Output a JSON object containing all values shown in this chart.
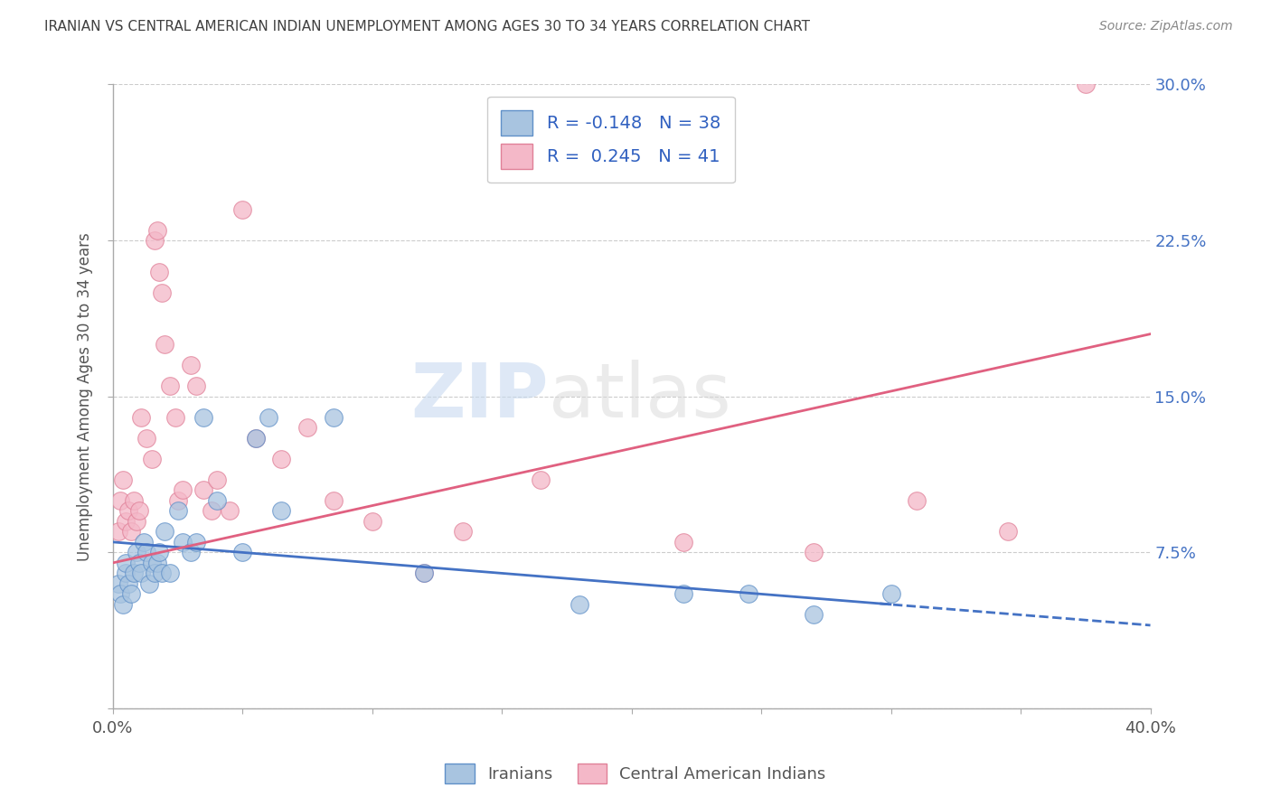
{
  "title": "IRANIAN VS CENTRAL AMERICAN INDIAN UNEMPLOYMENT AMONG AGES 30 TO 34 YEARS CORRELATION CHART",
  "source": "Source: ZipAtlas.com",
  "ylabel": "Unemployment Among Ages 30 to 34 years",
  "xlim": [
    0.0,
    0.4
  ],
  "ylim": [
    0.0,
    0.3
  ],
  "xticks": [
    0.0,
    0.05,
    0.1,
    0.15,
    0.2,
    0.25,
    0.3,
    0.35,
    0.4
  ],
  "xticklabels_show": [
    "0.0%",
    "",
    "",
    "",
    "",
    "",
    "",
    "",
    "40.0%"
  ],
  "yticks": [
    0.0,
    0.075,
    0.15,
    0.225,
    0.3
  ],
  "yticklabels": [
    "",
    "7.5%",
    "15.0%",
    "22.5%",
    "30.0%"
  ],
  "color_iranians": "#a8c4e0",
  "color_central": "#f4b8c8",
  "color_iranians_edge": "#6090c8",
  "color_central_edge": "#e08098",
  "color_iranians_line": "#4472c4",
  "color_central_line": "#e06080",
  "color_title": "#404040",
  "color_source": "#888888",
  "color_legend_text": "#3060c0",
  "color_legend_R": "#e05070",
  "iranians_x": [
    0.002,
    0.003,
    0.004,
    0.005,
    0.005,
    0.006,
    0.007,
    0.008,
    0.009,
    0.01,
    0.011,
    0.012,
    0.013,
    0.014,
    0.015,
    0.016,
    0.017,
    0.018,
    0.019,
    0.02,
    0.022,
    0.025,
    0.027,
    0.03,
    0.032,
    0.035,
    0.04,
    0.05,
    0.055,
    0.06,
    0.065,
    0.085,
    0.12,
    0.18,
    0.22,
    0.245,
    0.27,
    0.3
  ],
  "iranians_y": [
    0.06,
    0.055,
    0.05,
    0.065,
    0.07,
    0.06,
    0.055,
    0.065,
    0.075,
    0.07,
    0.065,
    0.08,
    0.075,
    0.06,
    0.07,
    0.065,
    0.07,
    0.075,
    0.065,
    0.085,
    0.065,
    0.095,
    0.08,
    0.075,
    0.08,
    0.14,
    0.1,
    0.075,
    0.13,
    0.14,
    0.095,
    0.14,
    0.065,
    0.05,
    0.055,
    0.055,
    0.045,
    0.055
  ],
  "central_x": [
    0.002,
    0.003,
    0.004,
    0.005,
    0.006,
    0.007,
    0.008,
    0.009,
    0.01,
    0.011,
    0.013,
    0.015,
    0.016,
    0.017,
    0.018,
    0.019,
    0.02,
    0.022,
    0.024,
    0.025,
    0.027,
    0.03,
    0.032,
    0.035,
    0.038,
    0.04,
    0.045,
    0.05,
    0.055,
    0.065,
    0.075,
    0.085,
    0.1,
    0.12,
    0.135,
    0.165,
    0.22,
    0.27,
    0.31,
    0.345,
    0.375
  ],
  "central_y": [
    0.085,
    0.1,
    0.11,
    0.09,
    0.095,
    0.085,
    0.1,
    0.09,
    0.095,
    0.14,
    0.13,
    0.12,
    0.225,
    0.23,
    0.21,
    0.2,
    0.175,
    0.155,
    0.14,
    0.1,
    0.105,
    0.165,
    0.155,
    0.105,
    0.095,
    0.11,
    0.095,
    0.24,
    0.13,
    0.12,
    0.135,
    0.1,
    0.09,
    0.065,
    0.085,
    0.11,
    0.08,
    0.075,
    0.1,
    0.085,
    0.3
  ],
  "watermark_zip": "ZIP",
  "watermark_atlas": "atlas",
  "background_color": "#ffffff",
  "grid_color": "#cccccc"
}
